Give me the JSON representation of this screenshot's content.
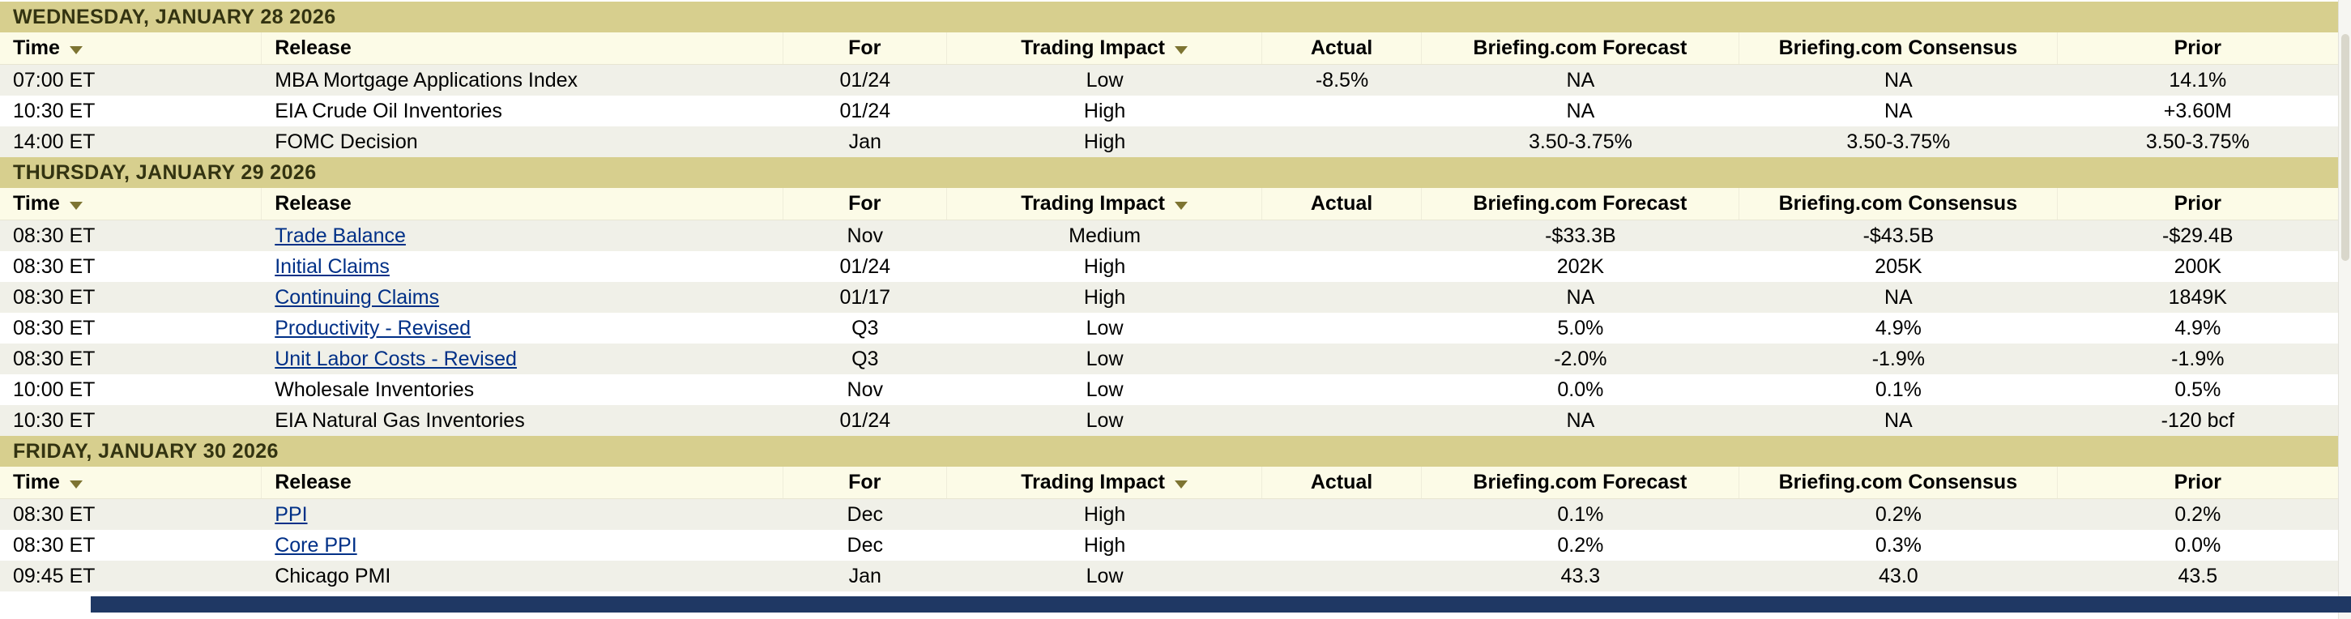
{
  "columns": [
    {
      "label": "Time",
      "sortable": true,
      "align": "left"
    },
    {
      "label": "Release",
      "sortable": false,
      "align": "left"
    },
    {
      "label": "For",
      "sortable": false,
      "align": "center"
    },
    {
      "label": "Trading Impact",
      "sortable": true,
      "align": "center"
    },
    {
      "label": "Actual",
      "sortable": false,
      "align": "center"
    },
    {
      "label": "Briefing.com Forecast",
      "sortable": false,
      "align": "center"
    },
    {
      "label": "Briefing.com Consensus",
      "sortable": false,
      "align": "center"
    },
    {
      "label": "Prior",
      "sortable": false,
      "align": "center"
    }
  ],
  "sections": [
    {
      "date_header": "WEDNESDAY, JANUARY 28 2026",
      "rows": [
        {
          "time": "07:00 ET",
          "release": "MBA Mortgage Applications Index",
          "link": false,
          "for": "01/24",
          "impact": "Low",
          "actual": "-8.5%",
          "forecast": "NA",
          "consensus": "NA",
          "prior": "14.1%"
        },
        {
          "time": "10:30 ET",
          "release": "EIA Crude Oil Inventories",
          "link": false,
          "for": "01/24",
          "impact": "High",
          "actual": "",
          "forecast": "NA",
          "consensus": "NA",
          "prior": "+3.60M"
        },
        {
          "time": "14:00 ET",
          "release": "FOMC Decision",
          "link": false,
          "for": "Jan",
          "impact": "High",
          "actual": "",
          "forecast": "3.50-3.75%",
          "consensus": "3.50-3.75%",
          "prior": "3.50-3.75%"
        }
      ]
    },
    {
      "date_header": "THURSDAY, JANUARY 29 2026",
      "rows": [
        {
          "time": "08:30 ET",
          "release": "Trade Balance",
          "link": true,
          "for": "Nov",
          "impact": "Medium",
          "actual": "",
          "forecast": "-$33.3B",
          "consensus": "-$43.5B",
          "prior": "-$29.4B"
        },
        {
          "time": "08:30 ET",
          "release": "Initial Claims",
          "link": true,
          "for": "01/24",
          "impact": "High",
          "actual": "",
          "forecast": "202K",
          "consensus": "205K",
          "prior": "200K"
        },
        {
          "time": "08:30 ET",
          "release": "Continuing Claims",
          "link": true,
          "for": "01/17",
          "impact": "High",
          "actual": "",
          "forecast": "NA",
          "consensus": "NA",
          "prior": "1849K"
        },
        {
          "time": "08:30 ET",
          "release": "Productivity - Revised",
          "link": true,
          "for": "Q3",
          "impact": "Low",
          "actual": "",
          "forecast": "5.0%",
          "consensus": "4.9%",
          "prior": "4.9%"
        },
        {
          "time": "08:30 ET",
          "release": "Unit Labor Costs - Revised",
          "link": true,
          "for": "Q3",
          "impact": "Low",
          "actual": "",
          "forecast": "-2.0%",
          "consensus": "-1.9%",
          "prior": "-1.9%"
        },
        {
          "time": "10:00 ET",
          "release": "Wholesale Inventories",
          "link": false,
          "for": "Nov",
          "impact": "Low",
          "actual": "",
          "forecast": "0.0%",
          "consensus": "0.1%",
          "prior": "0.5%"
        },
        {
          "time": "10:30 ET",
          "release": "EIA Natural Gas Inventories",
          "link": false,
          "for": "01/24",
          "impact": "Low",
          "actual": "",
          "forecast": "NA",
          "consensus": "NA",
          "prior": "-120 bcf"
        }
      ]
    },
    {
      "date_header": "FRIDAY, JANUARY 30 2026",
      "rows": [
        {
          "time": "08:30 ET",
          "release": "PPI",
          "link": true,
          "for": "Dec",
          "impact": "High",
          "actual": "",
          "forecast": "0.1%",
          "consensus": "0.2%",
          "prior": "0.2%"
        },
        {
          "time": "08:30 ET",
          "release": "Core PPI",
          "link": true,
          "for": "Dec",
          "impact": "High",
          "actual": "",
          "forecast": "0.2%",
          "consensus": "0.3%",
          "prior": "0.0%"
        },
        {
          "time": "09:45 ET",
          "release": "Chicago PMI",
          "link": false,
          "for": "Jan",
          "impact": "Low",
          "actual": "",
          "forecast": "43.3",
          "consensus": "43.0",
          "prior": "43.5"
        }
      ]
    }
  ],
  "colors": {
    "day_header_bg": "#d7cf8e",
    "day_header_text": "#333311",
    "column_header_bg": "#fcfbe7",
    "row_alt_bg": "#f0f0e8",
    "row_bg": "#ffffff",
    "link": "#003087",
    "sort_arrow": "#7d7432",
    "footer_bar": "#1f3864"
  }
}
